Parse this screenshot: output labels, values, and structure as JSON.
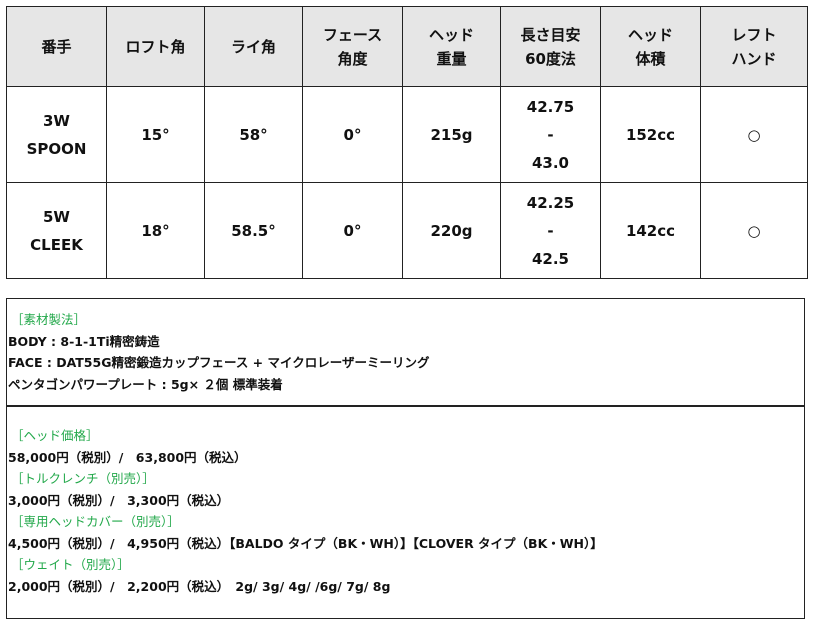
{
  "table": {
    "headers": [
      [
        "番手"
      ],
      [
        "ロフト角"
      ],
      [
        "ライ角"
      ],
      [
        "フェース",
        "角度"
      ],
      [
        "ヘッド",
        "重量"
      ],
      [
        "長さ目安",
        "60度法"
      ],
      [
        "ヘッド",
        "体積"
      ],
      [
        "レフト",
        "ハンド"
      ]
    ],
    "rows": [
      {
        "club": [
          "3W",
          "SPOON"
        ],
        "loft": "15°",
        "lie": "58°",
        "face": "0°",
        "weight": "215g",
        "length": [
          "42.75",
          "-",
          "43.0"
        ],
        "volume": "152cc",
        "left": "○"
      },
      {
        "club": [
          "5W",
          "CLEEK"
        ],
        "loft": "18°",
        "lie": "58.5°",
        "face": "0°",
        "weight": "220g",
        "length": [
          "42.25",
          "-",
          "42.5"
        ],
        "volume": "142cc",
        "left": "○"
      }
    ]
  },
  "materials": {
    "heading": "［素材製法］",
    "lines": [
      "BODY : 8-1-1Ti精密鋳造",
      "FACE : DAT55G精密鍛造カップフェース + マイクロレーザーミーリング",
      "ペンタゴンパワープレート : 5g× ２個 標準装着"
    ]
  },
  "prices": [
    {
      "heading": "［ヘッド価格］",
      "line": "58,000円（税別）/　63,800円（税込）"
    },
    {
      "heading": "［トルクレンチ（別売）］",
      "line": "3,000円（税別）/　3,300円（税込）"
    },
    {
      "heading": "［専用ヘッドカバー（別売）］",
      "line": "4,500円（税別）/　4,950円（税込）【BALDO タイプ（BK・WH）】【CLOVER タイプ（BK・WH）】"
    },
    {
      "heading": "［ウェイト（別売）］",
      "line": "2,000円（税別）/　2,200円（税込）　2g/ 3g/ 4g/ /6g/ 7g/ 8g"
    }
  ],
  "colors": {
    "heading_green": "#22a84a",
    "header_bg": "#e6e6e6"
  }
}
